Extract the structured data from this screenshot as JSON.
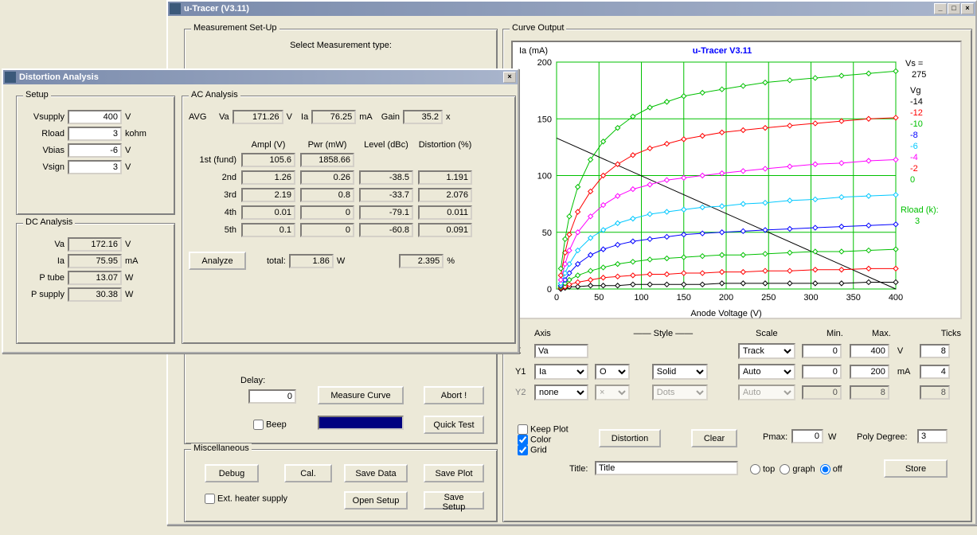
{
  "main_window": {
    "title": "u-Tracer (V3.11)",
    "measurement_setup_label": "Measurement Set-Up",
    "select_measurement_label": "Select Measurement type:",
    "delay_label": "Delay:",
    "delay_value": "0",
    "measure_curve": "Measure Curve",
    "abort": "Abort !",
    "beep_label": "Beep",
    "quick_test": "Quick Test",
    "miscellaneous_label": "Miscellaneous",
    "debug": "Debug",
    "cal": "Cal.",
    "save_data": "Save Data",
    "save_plot": "Save Plot",
    "ext_heater_label": "Ext. heater supply",
    "open_setup": "Open Setup",
    "save_setup": "Save Setup"
  },
  "curve_output": {
    "label": "Curve Output",
    "chart_title": "u-Tracer V3.11",
    "chart_title_color": "#0000ff",
    "y_axis_label": "Ia (mA)",
    "x_axis_label": "Anode Voltage (V)",
    "xlim": [
      0,
      400
    ],
    "ylim": [
      0,
      200
    ],
    "xtick_step": 50,
    "ytick_step": 50,
    "grid_color": "#00c000",
    "background_color": "#ffffff",
    "vs_label": "Vs =",
    "vs_value": "275",
    "vg_label": "Vg",
    "rload_label": "Rload (k):",
    "rload_value": "3",
    "rload_color": "#00c000",
    "load_line": {
      "x1": 0,
      "y1": 133,
      "x2": 400,
      "y2": 0,
      "color": "#000000"
    },
    "series": [
      {
        "vg": "-14",
        "color": "#000000",
        "pts": [
          [
            5,
            0
          ],
          [
            10,
            1
          ],
          [
            15,
            2
          ],
          [
            25,
            2
          ],
          [
            40,
            3
          ],
          [
            55,
            3
          ],
          [
            72,
            3
          ],
          [
            90,
            4
          ],
          [
            110,
            4
          ],
          [
            130,
            4
          ],
          [
            150,
            4
          ],
          [
            172,
            4
          ],
          [
            195,
            5
          ],
          [
            220,
            5
          ],
          [
            246,
            5
          ],
          [
            275,
            5
          ],
          [
            305,
            5
          ],
          [
            336,
            5
          ],
          [
            368,
            6
          ],
          [
            400,
            6
          ]
        ]
      },
      {
        "vg": "-12",
        "color": "#ff0000",
        "pts": [
          [
            5,
            1
          ],
          [
            10,
            2
          ],
          [
            15,
            4
          ],
          [
            25,
            6
          ],
          [
            40,
            8
          ],
          [
            55,
            10
          ],
          [
            72,
            11
          ],
          [
            90,
            12
          ],
          [
            110,
            13
          ],
          [
            130,
            13
          ],
          [
            150,
            14
          ],
          [
            172,
            14
          ],
          [
            195,
            15
          ],
          [
            220,
            15
          ],
          [
            246,
            16
          ],
          [
            275,
            16
          ],
          [
            305,
            17
          ],
          [
            336,
            17
          ],
          [
            368,
            18
          ],
          [
            400,
            18
          ]
        ]
      },
      {
        "vg": "-10",
        "color": "#00c000",
        "pts": [
          [
            5,
            2
          ],
          [
            10,
            5
          ],
          [
            15,
            8
          ],
          [
            25,
            12
          ],
          [
            40,
            16
          ],
          [
            55,
            19
          ],
          [
            72,
            22
          ],
          [
            90,
            24
          ],
          [
            110,
            26
          ],
          [
            130,
            27
          ],
          [
            150,
            28
          ],
          [
            172,
            29
          ],
          [
            195,
            30
          ],
          [
            220,
            30
          ],
          [
            246,
            31
          ],
          [
            275,
            32
          ],
          [
            305,
            33
          ],
          [
            336,
            33
          ],
          [
            368,
            34
          ],
          [
            400,
            35
          ]
        ]
      },
      {
        "vg": "-8",
        "color": "#0000ff",
        "pts": [
          [
            5,
            3
          ],
          [
            10,
            8
          ],
          [
            15,
            14
          ],
          [
            25,
            22
          ],
          [
            40,
            30
          ],
          [
            55,
            35
          ],
          [
            72,
            39
          ],
          [
            90,
            42
          ],
          [
            110,
            44
          ],
          [
            130,
            46
          ],
          [
            150,
            48
          ],
          [
            172,
            49
          ],
          [
            195,
            50
          ],
          [
            220,
            51
          ],
          [
            246,
            52
          ],
          [
            275,
            53
          ],
          [
            305,
            54
          ],
          [
            336,
            55
          ],
          [
            368,
            56
          ],
          [
            400,
            57
          ]
        ]
      },
      {
        "vg": "-6",
        "color": "#00c8ff",
        "pts": [
          [
            5,
            5
          ],
          [
            10,
            14
          ],
          [
            15,
            22
          ],
          [
            25,
            34
          ],
          [
            40,
            45
          ],
          [
            55,
            52
          ],
          [
            72,
            58
          ],
          [
            90,
            62
          ],
          [
            110,
            66
          ],
          [
            130,
            68
          ],
          [
            150,
            70
          ],
          [
            172,
            72
          ],
          [
            195,
            73
          ],
          [
            220,
            75
          ],
          [
            246,
            76
          ],
          [
            275,
            78
          ],
          [
            305,
            79
          ],
          [
            336,
            81
          ],
          [
            368,
            82
          ],
          [
            400,
            83
          ]
        ]
      },
      {
        "vg": "-4",
        "color": "#ff00ff",
        "pts": [
          [
            5,
            8
          ],
          [
            10,
            22
          ],
          [
            15,
            34
          ],
          [
            25,
            50
          ],
          [
            40,
            64
          ],
          [
            55,
            74
          ],
          [
            72,
            82
          ],
          [
            90,
            88
          ],
          [
            110,
            92
          ],
          [
            130,
            96
          ],
          [
            150,
            98
          ],
          [
            172,
            100
          ],
          [
            195,
            102
          ],
          [
            220,
            104
          ],
          [
            246,
            106
          ],
          [
            275,
            108
          ],
          [
            305,
            110
          ],
          [
            336,
            111
          ],
          [
            368,
            113
          ],
          [
            400,
            114
          ]
        ]
      },
      {
        "vg": "-2",
        "color": "#ff0000",
        "pts": [
          [
            5,
            12
          ],
          [
            10,
            32
          ],
          [
            15,
            48
          ],
          [
            25,
            68
          ],
          [
            40,
            86
          ],
          [
            55,
            100
          ],
          [
            72,
            110
          ],
          [
            90,
            118
          ],
          [
            110,
            124
          ],
          [
            130,
            128
          ],
          [
            150,
            132
          ],
          [
            172,
            135
          ],
          [
            195,
            138
          ],
          [
            220,
            140
          ],
          [
            246,
            142
          ],
          [
            275,
            144
          ],
          [
            305,
            146
          ],
          [
            336,
            148
          ],
          [
            368,
            150
          ],
          [
            400,
            151
          ]
        ]
      },
      {
        "vg": "0",
        "color": "#00c000",
        "pts": [
          [
            5,
            18
          ],
          [
            10,
            44
          ],
          [
            15,
            64
          ],
          [
            25,
            90
          ],
          [
            40,
            114
          ],
          [
            55,
            130
          ],
          [
            72,
            142
          ],
          [
            90,
            152
          ],
          [
            110,
            160
          ],
          [
            130,
            165
          ],
          [
            150,
            170
          ],
          [
            172,
            173
          ],
          [
            195,
            176
          ],
          [
            220,
            179
          ],
          [
            246,
            182
          ],
          [
            275,
            184
          ],
          [
            305,
            186
          ],
          [
            336,
            188
          ],
          [
            368,
            190
          ],
          [
            400,
            192
          ]
        ]
      }
    ],
    "axis_header": {
      "axis": "Axis",
      "style": "——   Style   ——",
      "scale": "Scale",
      "min": "Min.",
      "max": "Max.",
      "ticks": "Ticks"
    },
    "x_row": {
      "label": "X",
      "value": "Va",
      "scale": "Track",
      "min": "0",
      "max": "400",
      "unit": "V",
      "ticks": "8"
    },
    "y1_row": {
      "label": "Y1",
      "value": "Ia",
      "marker": "O",
      "line": "Solid",
      "scale": "Auto",
      "min": "0",
      "max": "200",
      "unit": "mA",
      "ticks": "4"
    },
    "y2_row": {
      "label": "Y2",
      "value": "none",
      "marker": "×",
      "line": "Dots",
      "scale": "Auto",
      "min": "0",
      "max": "8",
      "unit": "",
      "ticks": "8"
    },
    "keep_plot": "Keep Plot",
    "color": "Color",
    "grid": "Grid",
    "distortion_btn": "Distortion",
    "clear_btn": "Clear",
    "pmax_label": "Pmax:",
    "pmax_value": "0",
    "pmax_unit": "W",
    "poly_label": "Poly Degree:",
    "poly_value": "3",
    "title_label": "Title:",
    "title_value": "Title",
    "top": "top",
    "graph": "graph",
    "off": "off",
    "store": "Store"
  },
  "distortion_window": {
    "title": "Distortion Analysis",
    "setup_label": "Setup",
    "setup": {
      "vsupply_label": "Vsupply",
      "vsupply": "400",
      "vsupply_u": "V",
      "rload_label": "Rload",
      "rload": "3",
      "rload_u": "kohm",
      "vbias_label": "Vbias",
      "vbias": "-6",
      "vbias_u": "V",
      "vsign_label": "Vsign",
      "vsign": "3",
      "vsign_u": "V"
    },
    "dc_label": "DC Analysis",
    "dc": {
      "va_label": "Va",
      "va": "172.16",
      "va_u": "V",
      "ia_label": "Ia",
      "ia": "75.95",
      "ia_u": "mA",
      "ptube_label": "P tube",
      "ptube": "13.07",
      "ptube_u": "W",
      "psup_label": "P supply",
      "psup": "30.38",
      "psup_u": "W"
    },
    "ac_label": "AC Analysis",
    "avg_label": "AVG",
    "avg_va_label": "Va",
    "avg_va": "171.26",
    "avg_va_u": "V",
    "avg_ia_label": "Ia",
    "avg_ia": "76.25",
    "avg_ia_u": "mA",
    "gain_label": "Gain",
    "gain": "35.2",
    "gain_u": "x",
    "col_ampl": "Ampl (V)",
    "col_pwr": "Pwr (mW)",
    "col_level": "Level (dBc)",
    "col_dist": "Distortion (%)",
    "harmonics": [
      {
        "name": "1st (fund)",
        "ampl": "105.6",
        "pwr": "1858.66",
        "level": "",
        "dist": ""
      },
      {
        "name": "2nd",
        "ampl": "1.26",
        "pwr": "0.26",
        "level": "-38.5",
        "dist": "1.191"
      },
      {
        "name": "3rd",
        "ampl": "2.19",
        "pwr": "0.8",
        "level": "-33.7",
        "dist": "2.076"
      },
      {
        "name": "4th",
        "ampl": "0.01",
        "pwr": "0",
        "level": "-79.1",
        "dist": "0.011"
      },
      {
        "name": "5th",
        "ampl": "0.1",
        "pwr": "0",
        "level": "-60.8",
        "dist": "0.091"
      }
    ],
    "analyze": "Analyze",
    "total_label": "total:",
    "total_pwr": "1.86",
    "total_pwr_u": "W",
    "total_dist": "2.395",
    "total_dist_u": "%"
  }
}
